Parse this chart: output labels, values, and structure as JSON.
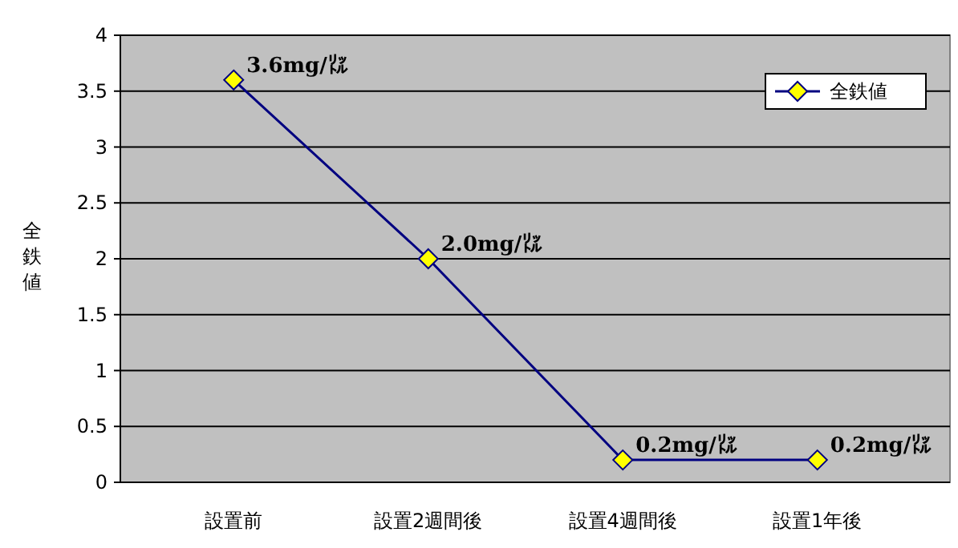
{
  "chart_data": {
    "type": "line",
    "ylabel": "全鉄値",
    "categories": [
      "設置前",
      "設置2週間後",
      "設置4週間後",
      "設置1年後"
    ],
    "series": [
      {
        "name": "全鉄値",
        "color": "#000080",
        "values": [
          3.6,
          2.0,
          0.2,
          0.2
        ],
        "value_labels": [
          "3.6mg/㍑",
          "2.0mg/㍑",
          "0.2mg/㍑",
          "0.2mg/㍑"
        ]
      }
    ],
    "ylim": [
      0,
      4
    ],
    "yticks": [
      0,
      0.5,
      1,
      1.5,
      2,
      2.5,
      3,
      3.5,
      4
    ],
    "grid": "y",
    "legend": "top right",
    "marker": "diamond"
  }
}
